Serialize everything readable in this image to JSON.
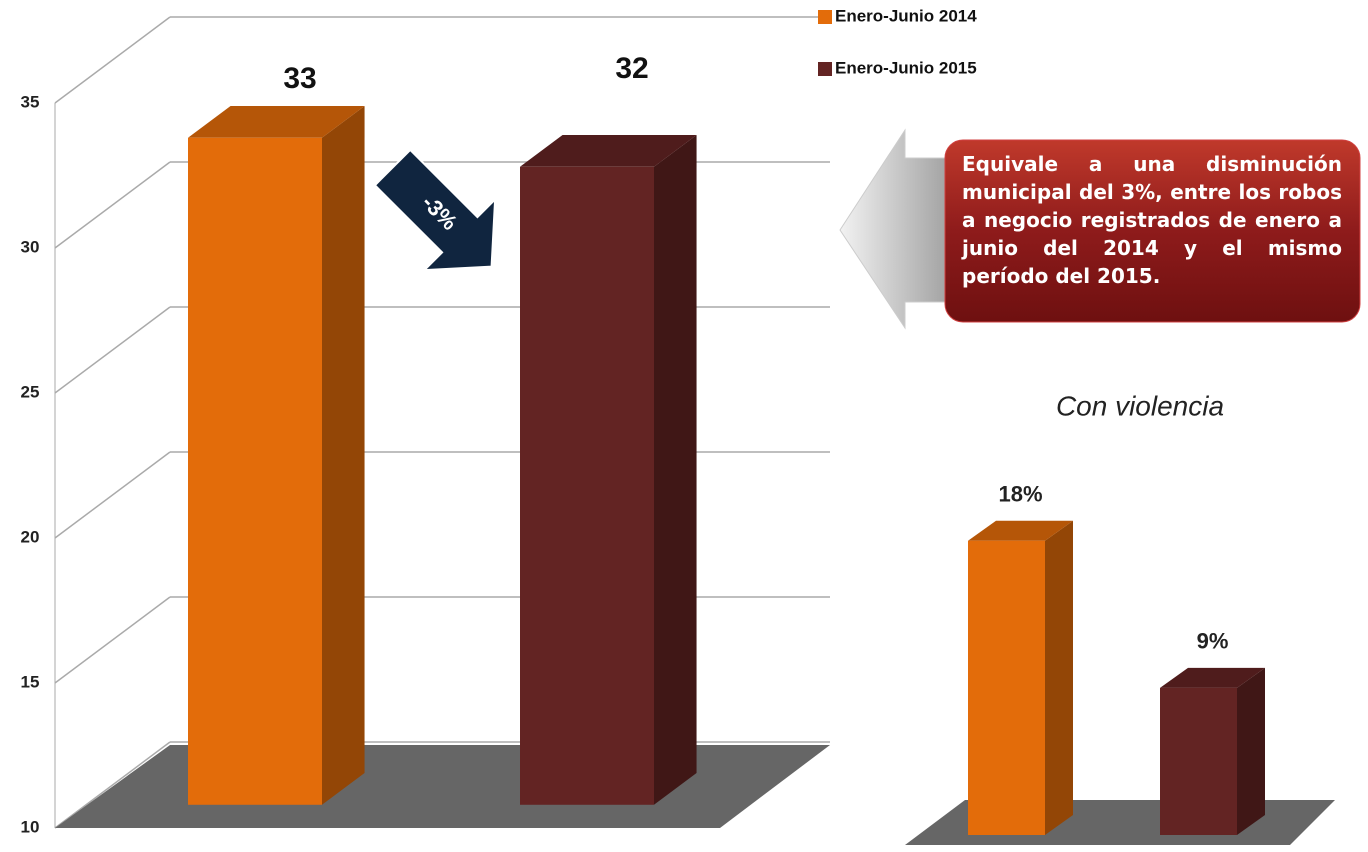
{
  "chart_data": [
    {
      "type": "bar3d",
      "series": [
        {
          "name": "Enero-Junio 2014",
          "color": "#e36c0a",
          "values": [
            33
          ]
        },
        {
          "name": "Enero-Junio 2015",
          "color": "#632423",
          "values": [
            32
          ]
        }
      ],
      "ylim": [
        10,
        35
      ],
      "yticks": [
        10,
        15,
        20,
        25,
        30,
        35
      ],
      "grid": true,
      "legend": "top-right",
      "annotations": [
        "-3%",
        "Equivale a una disminución municipal del 3%, entre los robos a negocio registrados de enero a junio del 2014 y el mismo período del 2015."
      ]
    },
    {
      "type": "bar3d-small",
      "title": "Con violencia",
      "series": [
        {
          "name": "Enero-Junio 2014",
          "color": "#e36c0a",
          "values": [
            18
          ],
          "value_labels": [
            "18%"
          ]
        },
        {
          "name": "Enero-Junio 2015",
          "color": "#632423",
          "values": [
            9
          ],
          "value_labels": [
            "9%"
          ]
        }
      ]
    }
  ]
}
